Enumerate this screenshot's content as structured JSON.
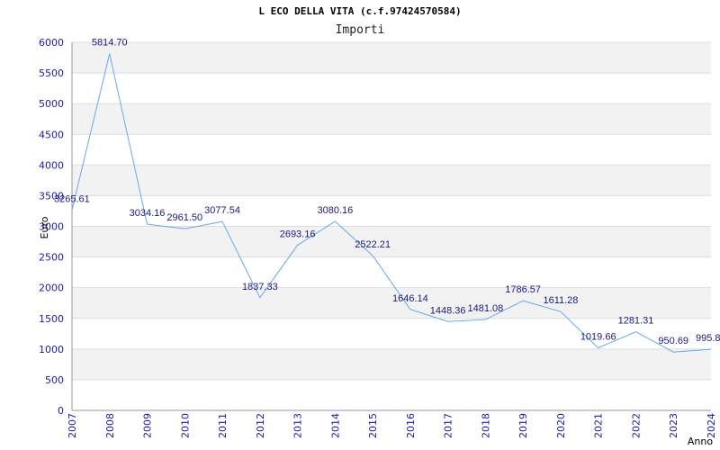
{
  "chart_data": {
    "type": "line",
    "title": "L ECO DELLA VITA (c.f.97424570584)",
    "subtitle": "Importi",
    "ylabel": "Euro",
    "xlabel": "Anno",
    "ylim": [
      0,
      6000
    ],
    "yticks": [
      0,
      500,
      1000,
      1500,
      2000,
      2500,
      3000,
      3500,
      4000,
      4500,
      5000,
      5500,
      6000
    ],
    "grid": true,
    "x": [
      "2007",
      "2008",
      "2009",
      "2010",
      "2011",
      "2012",
      "2013",
      "2014",
      "2015",
      "2016",
      "2017",
      "2018",
      "2019",
      "2020",
      "2021",
      "2022",
      "2023",
      "2024"
    ],
    "series": [
      {
        "values": [
          3265.61,
          5814.7,
          3034.16,
          2961.5,
          3077.54,
          1837.33,
          2693.16,
          3080.16,
          2522.21,
          1646.14,
          1448.36,
          1481.08,
          1786.57,
          1611.28,
          1019.66,
          1281.31,
          950.69,
          995.8
        ],
        "labels": [
          "3265.61",
          "5814.70",
          "3034.16",
          "2961.50",
          "3077.54",
          "1837.33",
          "2693.16",
          "3080.16",
          "2522.21",
          "1646.14",
          "1448.36",
          "1481.08",
          "1786.57",
          "1611.28",
          "1019.66",
          "1281.31",
          "950.69",
          "995.8"
        ]
      }
    ],
    "colors": {
      "line": "#6aa8e8",
      "text": "#1a1aa6",
      "band": "#f2f2f2",
      "grid": "#dddddd"
    }
  }
}
